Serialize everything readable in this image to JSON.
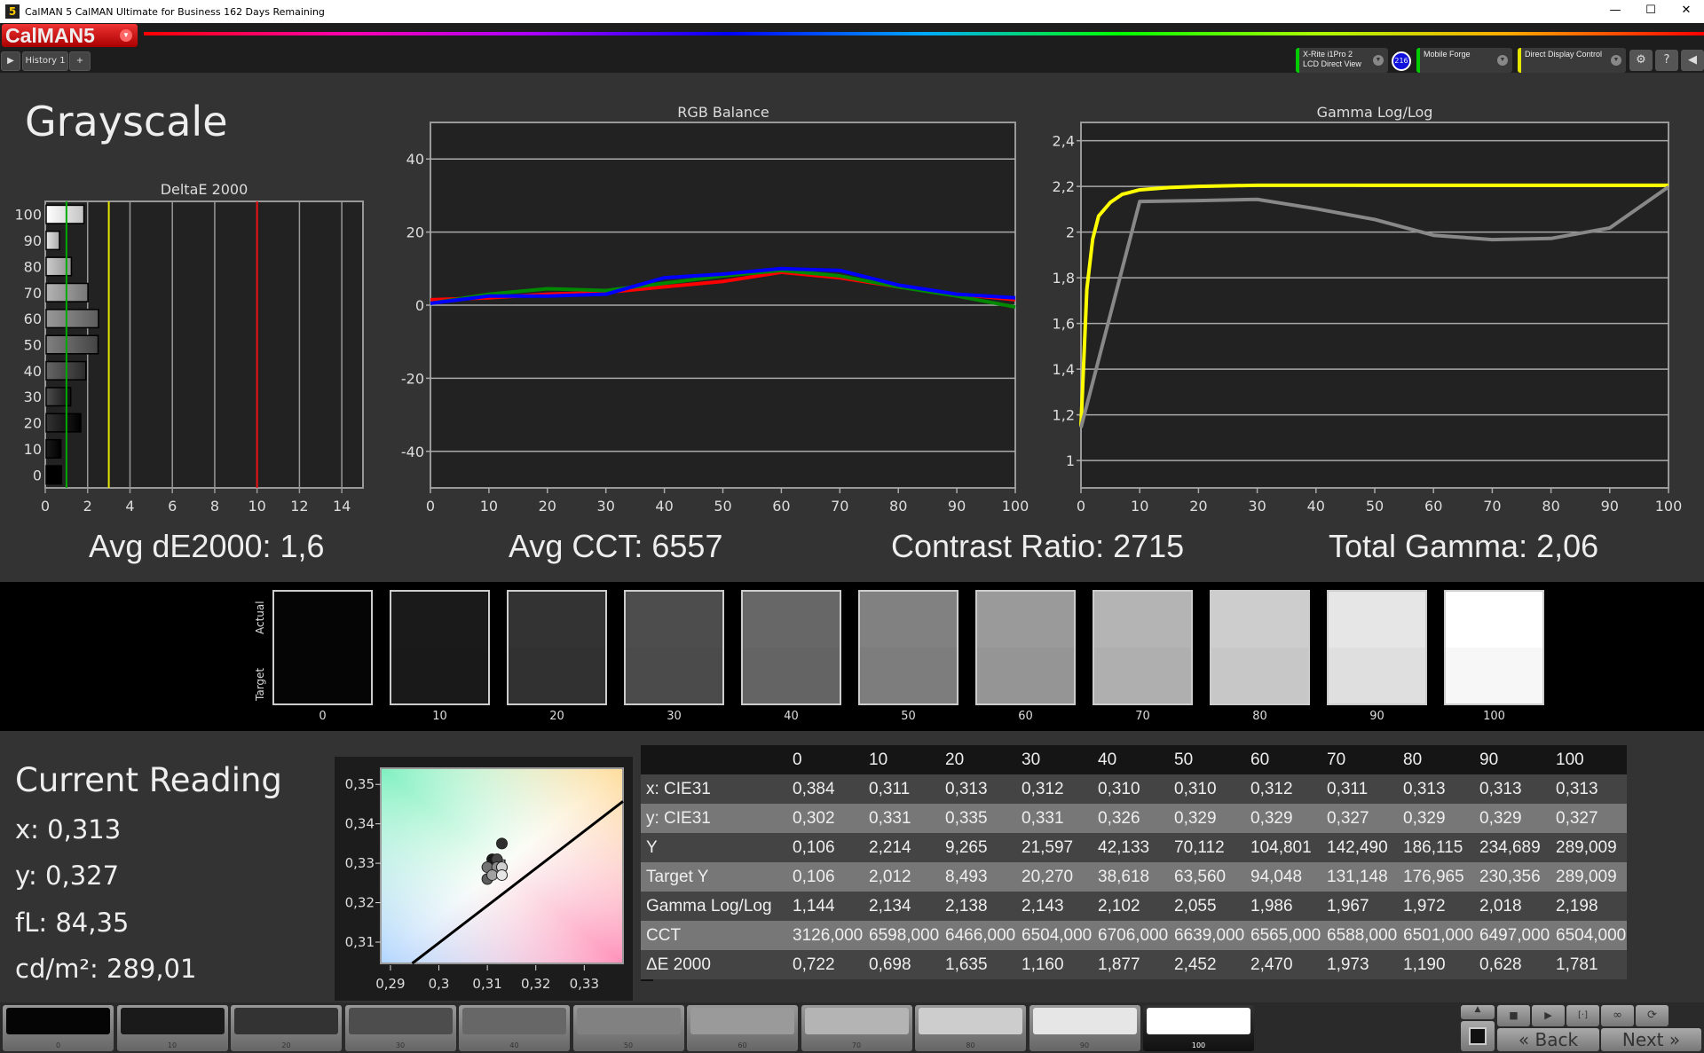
{
  "window": {
    "title": "CalMAN 5 CalMAN Ultimate for Business 162 Days Remaining",
    "logo": "CalMAN5"
  },
  "tabs": {
    "history": "History 1",
    "add": "+"
  },
  "toolbar": {
    "meter": {
      "line1": "X-Rite i1Pro 2",
      "line2": "LCD Direct View",
      "badge": "216",
      "accent": "#00cc00"
    },
    "source": {
      "label": "Mobile Forge",
      "accent": "#00cc00"
    },
    "display": {
      "label": "Direct Display Control",
      "accent": "#e6e600"
    }
  },
  "page": {
    "title": "Grayscale"
  },
  "summary": {
    "avg_de": "Avg dE2000: 1,6",
    "avg_cct": "Avg CCT: 6557",
    "contrast": "Contrast Ratio: 2715",
    "gamma": "Total Gamma: 2,06"
  },
  "chart_data": [
    {
      "type": "bar",
      "title": "DeltaE 2000",
      "orientation": "horizontal",
      "categories": [
        "0",
        "10",
        "20",
        "30",
        "40",
        "50",
        "60",
        "70",
        "80",
        "90",
        "100"
      ],
      "values": [
        0.722,
        0.698,
        1.635,
        1.16,
        1.877,
        2.452,
        2.47,
        1.973,
        1.19,
        0.628,
        1.781
      ],
      "xlim": [
        0,
        15
      ],
      "xticks": [
        "0",
        "2",
        "4",
        "6",
        "8",
        "10",
        "12",
        "14"
      ],
      "thresholds": [
        {
          "value": 1,
          "color": "#00aa00"
        },
        {
          "value": 3,
          "color": "#e6e600"
        },
        {
          "value": 10,
          "color": "#ee1111"
        }
      ],
      "grid": true
    },
    {
      "type": "line",
      "title": "RGB Balance",
      "x": [
        0,
        10,
        20,
        30,
        40,
        50,
        60,
        70,
        80,
        90,
        100
      ],
      "ylim": [
        -50,
        50
      ],
      "yticks": [
        "-40",
        "-20",
        "0",
        "20",
        "40"
      ],
      "xticks": [
        "0",
        "10",
        "20",
        "30",
        "40",
        "50",
        "60",
        "70",
        "80",
        "90",
        "100"
      ],
      "grid": true,
      "series": [
        {
          "color": "#ff0000",
          "values": [
            1.5,
            2,
            3,
            3.5,
            5,
            6.5,
            9,
            7.5,
            5,
            3,
            1.5
          ]
        },
        {
          "color": "#008800",
          "values": [
            0.5,
            3,
            4.5,
            4,
            6,
            8,
            9.5,
            8,
            5,
            2.5,
            -0.5
          ]
        },
        {
          "color": "#0000ff",
          "values": [
            0.5,
            2.5,
            2.5,
            3,
            7.5,
            8.5,
            10,
            9.5,
            5.5,
            3,
            2
          ]
        }
      ]
    },
    {
      "type": "line",
      "title": "Gamma Log/Log",
      "ylim": [
        0.88,
        2.48
      ],
      "yticks": [
        "1",
        "1,2",
        "1,4",
        "1,6",
        "1,8",
        "2",
        "2,2",
        "2,4"
      ],
      "xticks": [
        "0",
        "10",
        "20",
        "30",
        "40",
        "50",
        "60",
        "70",
        "80",
        "90",
        "100"
      ],
      "grid": true,
      "series": [
        {
          "color": "#ffff00",
          "x": [
            0,
            1,
            2,
            3,
            5,
            7,
            10,
            15,
            20,
            30,
            50,
            100
          ],
          "values": [
            1.15,
            1.75,
            1.97,
            2.07,
            2.13,
            2.165,
            2.185,
            2.195,
            2.2,
            2.205,
            2.205,
            2.205
          ]
        },
        {
          "color": "#888888",
          "x": [
            0,
            10,
            20,
            30,
            40,
            50,
            60,
            70,
            80,
            90,
            100
          ],
          "values": [
            1.144,
            2.134,
            2.138,
            2.143,
            2.102,
            2.055,
            1.986,
            1.967,
            1.972,
            2.018,
            2.198
          ]
        }
      ]
    },
    {
      "type": "scatter",
      "xlim": [
        0.288,
        0.338
      ],
      "ylim": [
        0.3046,
        0.3541
      ],
      "xticks": [
        "0,29",
        "0,3",
        "0,31",
        "0,32",
        "0,33"
      ],
      "yticks": [
        "0,31",
        "0,32",
        "0,33",
        "0,34",
        "0,35"
      ],
      "points": [
        {
          "x": 0.311,
          "y": 0.331
        },
        {
          "x": 0.313,
          "y": 0.335
        },
        {
          "x": 0.312,
          "y": 0.331
        },
        {
          "x": 0.31,
          "y": 0.326
        },
        {
          "x": 0.31,
          "y": 0.329
        },
        {
          "x": 0.312,
          "y": 0.329
        },
        {
          "x": 0.311,
          "y": 0.327
        },
        {
          "x": 0.313,
          "y": 0.329
        },
        {
          "x": 0.313,
          "y": 0.329
        },
        {
          "x": 0.313,
          "y": 0.327
        }
      ],
      "target": {
        "x": 0.3127,
        "y": 0.329
      },
      "locus": [
        [
          0.2945,
          0.3046
        ],
        [
          0.338,
          0.3457
        ]
      ]
    }
  ],
  "swatches": {
    "actual_label": "Actual",
    "target_label": "Target",
    "items": [
      {
        "label": "0",
        "color": "#050505"
      },
      {
        "label": "10",
        "color": "#1a1a1a"
      },
      {
        "label": "20",
        "color": "#333333"
      },
      {
        "label": "30",
        "color": "#4d4d4d"
      },
      {
        "label": "40",
        "color": "#676767"
      },
      {
        "label": "50",
        "color": "#818181"
      },
      {
        "label": "60",
        "color": "#9a9a9a"
      },
      {
        "label": "70",
        "color": "#b4b4b4"
      },
      {
        "label": "80",
        "color": "#cdcdcd"
      },
      {
        "label": "90",
        "color": "#e6e6e6"
      },
      {
        "label": "100",
        "color": "#ffffff"
      }
    ]
  },
  "current_reading": {
    "title": "Current Reading",
    "x": "x: 0,313",
    "y": "y: 0,327",
    "fl": "fL: 84,35",
    "cdm2": "cd/m²: 289,01"
  },
  "table": {
    "headers": [
      "",
      "0",
      "10",
      "20",
      "30",
      "40",
      "50",
      "60",
      "70",
      "80",
      "90",
      "100"
    ],
    "rows": [
      [
        "x: CIE31",
        "0,384",
        "0,311",
        "0,313",
        "0,312",
        "0,310",
        "0,310",
        "0,312",
        "0,311",
        "0,313",
        "0,313",
        "0,313"
      ],
      [
        "y: CIE31",
        "0,302",
        "0,331",
        "0,335",
        "0,331",
        "0,326",
        "0,329",
        "0,329",
        "0,327",
        "0,329",
        "0,329",
        "0,327"
      ],
      [
        "Y",
        "0,106",
        "2,214",
        "9,265",
        "21,597",
        "42,133",
        "70,112",
        "104,801",
        "142,490",
        "186,115",
        "234,689",
        "289,009"
      ],
      [
        "Target Y",
        "0,106",
        "2,012",
        "8,493",
        "20,270",
        "38,618",
        "63,560",
        "94,048",
        "131,148",
        "176,965",
        "230,356",
        "289,009"
      ],
      [
        "Gamma Log/Log",
        "1,144",
        "2,134",
        "2,138",
        "2,143",
        "2,102",
        "2,055",
        "1,986",
        "1,967",
        "1,972",
        "2,018",
        "2,198"
      ],
      [
        "CCT",
        "3126,000",
        "6598,000",
        "6466,000",
        "6504,000",
        "6706,000",
        "6639,000",
        "6565,000",
        "6588,000",
        "6501,000",
        "6497,000",
        "6504,000"
      ],
      [
        "ΔE 2000",
        "0,722",
        "0,698",
        "1,635",
        "1,160",
        "1,877",
        "2,452",
        "2,470",
        "1,973",
        "1,190",
        "0,628",
        "1,781"
      ]
    ]
  },
  "nav": {
    "back": "Back",
    "next": "Next",
    "selected_patch": "100"
  }
}
